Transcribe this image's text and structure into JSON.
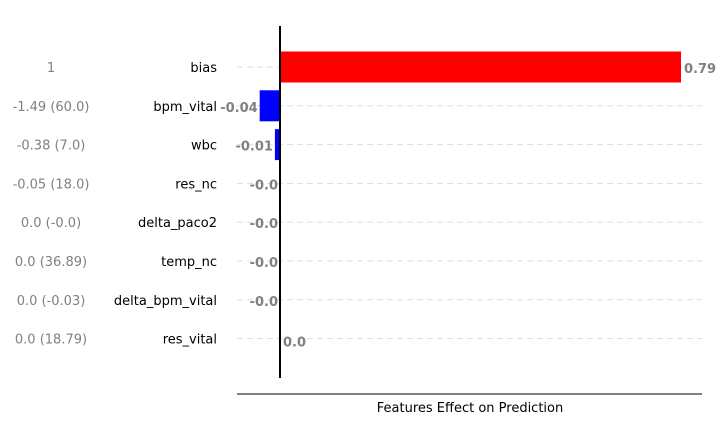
{
  "chart_data": {
    "type": "bar",
    "orientation": "horizontal",
    "xlabel": "Features Effect on Prediction",
    "grid": true,
    "rows": [
      {
        "feature": "bias",
        "input": "1",
        "value": 0.79,
        "label": "0.79",
        "color": "#ff0000"
      },
      {
        "feature": "bpm_vital",
        "input": "-1.49 (60.0)",
        "value": -0.04,
        "label": "-0.04",
        "color": "#0000ff"
      },
      {
        "feature": "wbc",
        "input": "-0.38 (7.0)",
        "value": -0.01,
        "label": "-0.01",
        "color": "#0000ff"
      },
      {
        "feature": "res_nc",
        "input": "-0.05 (18.0)",
        "value": -0.0,
        "label": "-0.0",
        "color": "#0000ff"
      },
      {
        "feature": "delta_paco2",
        "input": "0.0 (-0.0)",
        "value": -0.0,
        "label": "-0.0",
        "color": "#0000ff"
      },
      {
        "feature": "temp_nc",
        "input": "0.0 (36.89)",
        "value": -0.0,
        "label": "-0.0",
        "color": "#0000ff"
      },
      {
        "feature": "delta_bpm_vital",
        "input": "0.0 (-0.03)",
        "value": -0.0,
        "label": "-0.0",
        "color": "#0000ff"
      },
      {
        "feature": "res_vital",
        "input": "0.0 (18.79)",
        "value": 0.0,
        "label": "0.0",
        "color": "#ff0000"
      }
    ]
  }
}
